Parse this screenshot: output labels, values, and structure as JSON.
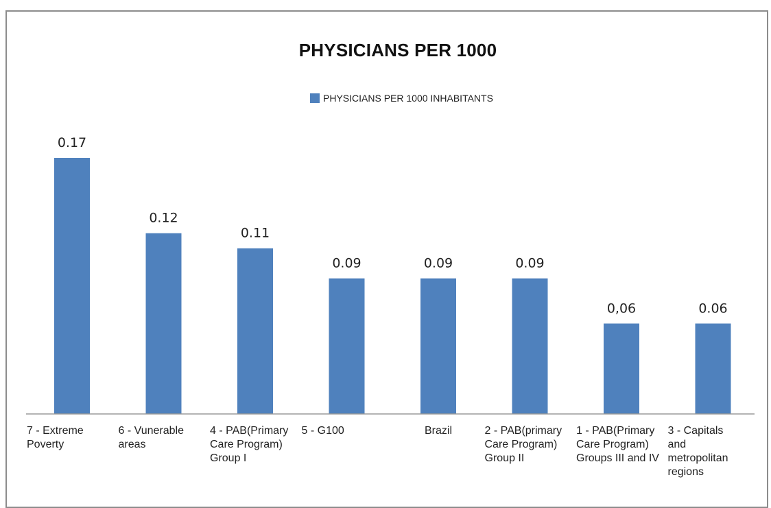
{
  "chart_data": {
    "type": "bar",
    "title": "PHYSICIANS PER 1000",
    "legend_position": "top",
    "series": [
      {
        "name": "PHYSICIANS PER 1000 INHABITANTS",
        "color": "#4f81bd",
        "values": [
          0.17,
          0.12,
          0.11,
          0.09,
          0.09,
          0.09,
          0.06,
          0.06
        ]
      }
    ],
    "value_labels": [
      "0.17",
      "0.12",
      "0.11",
      "0.09",
      "0.09",
      "0.09",
      "0,06",
      "0.06"
    ],
    "categories": [
      "7 - Extreme Poverty",
      "6 - Vunerable areas",
      "4 - PAB(Primary Care Program) Group I",
      "5 - G100",
      "Brazil",
      "2 - PAB(primary Care Program) Group II",
      "1 - PAB(Primary Care Program) Groups III and IV",
      "3 - Capitals and metropolitan regions"
    ],
    "category_lines": [
      [
        "7 - Extreme",
        "Poverty"
      ],
      [
        "6 - Vunerable",
        "areas"
      ],
      [
        "4 - PAB(Primary",
        "Care Program)",
        "Group I"
      ],
      [
        "5 - G100"
      ],
      [
        "Brazil"
      ],
      [
        "2 - PAB(primary",
        "Care Program)",
        "Group II"
      ],
      [
        "1 - PAB(Primary",
        "Care Program)",
        "Groups III and IV"
      ],
      [
        "3 - Capitals",
        "and",
        "metropolitan",
        "regions"
      ]
    ],
    "grid": false,
    "xlabel": "",
    "ylabel": ""
  }
}
